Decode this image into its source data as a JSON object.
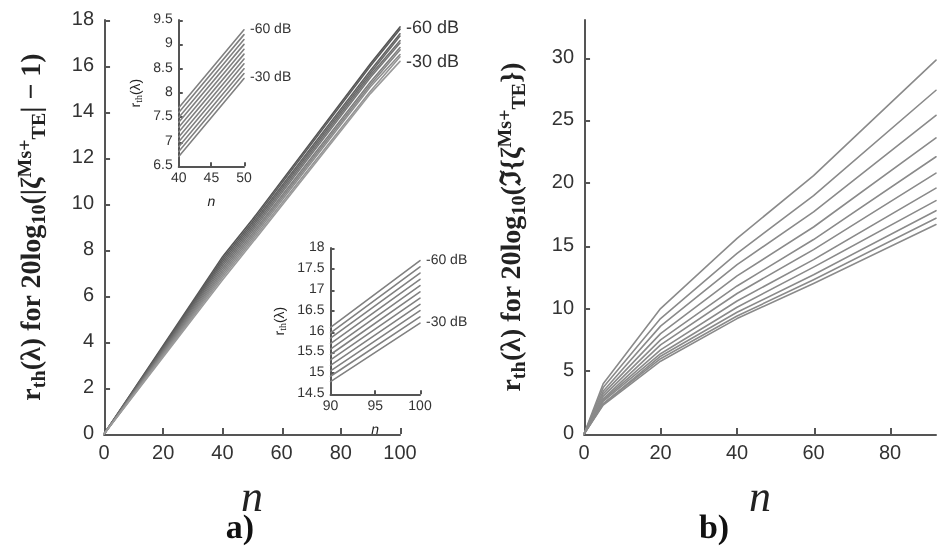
{
  "chart_data": [
    {
      "type": "line",
      "title": "a)",
      "xlabel": "n",
      "ylabel": "r$_{th}$(λ) for 20log$_{10}$(|ζ$^{Ms+}$$_{TE}$| − 1)",
      "x": [
        0,
        40,
        50,
        90,
        100
      ],
      "xlim": [
        0,
        100
      ],
      "xticks": [
        0,
        20,
        40,
        60,
        80,
        100
      ],
      "ylim": [
        0,
        18
      ],
      "yticks": [
        0,
        2,
        4,
        6,
        8,
        10,
        12,
        14,
        16,
        18
      ],
      "grid": false,
      "marker": "none",
      "series": [
        {
          "name": "-60 dB",
          "color": "#555555",
          "values": [
            0,
            7.7,
            9.3,
            16.1,
            17.7
          ]
        },
        {
          "color": "#5c5c5c",
          "values": [
            0,
            7.6,
            9.2,
            16.0,
            17.6
          ]
        },
        {
          "color": "#636363",
          "values": [
            0,
            7.5,
            9.1,
            15.8,
            17.4
          ]
        },
        {
          "color": "#6a6a6a",
          "values": [
            0,
            7.4,
            9.0,
            15.7,
            17.3
          ]
        },
        {
          "color": "#717171",
          "values": [
            0,
            7.3,
            8.9,
            15.6,
            17.1
          ]
        },
        {
          "color": "#787878",
          "values": [
            0,
            7.2,
            8.8,
            15.5,
            17.0
          ]
        },
        {
          "color": "#7f7f7f",
          "values": [
            0,
            7.1,
            8.7,
            15.3,
            16.8
          ]
        },
        {
          "color": "#868686",
          "values": [
            0,
            7.0,
            8.6,
            15.2,
            16.7
          ]
        },
        {
          "color": "#8d8d8d",
          "values": [
            0,
            6.9,
            8.5,
            15.1,
            16.5
          ]
        },
        {
          "color": "#949494",
          "values": [
            0,
            6.8,
            8.4,
            14.9,
            16.4
          ]
        },
        {
          "name": "-30 dB",
          "color": "#9b9b9b",
          "values": [
            0,
            6.7,
            8.3,
            14.8,
            16.2
          ]
        }
      ]
    },
    {
      "type": "line",
      "xlabel": "n",
      "ylabel": "r$_{th}$(λ)",
      "x": [
        40,
        50
      ],
      "xlim": [
        40,
        50
      ],
      "xticks": [
        40,
        45,
        50
      ],
      "ylim": [
        6.5,
        9.5
      ],
      "yticks": [
        6.5,
        7,
        7.5,
        8,
        8.5,
        9,
        9.5
      ],
      "grid": false,
      "marker": "none",
      "series": [
        {
          "name": "-60 dB",
          "color": "#808080",
          "values": [
            7.7,
            9.3
          ]
        },
        {
          "color": "#808080",
          "values": [
            7.6,
            9.2
          ]
        },
        {
          "color": "#808080",
          "values": [
            7.5,
            9.1
          ]
        },
        {
          "color": "#808080",
          "values": [
            7.4,
            9.0
          ]
        },
        {
          "color": "#808080",
          "values": [
            7.3,
            8.9
          ]
        },
        {
          "color": "#808080",
          "values": [
            7.2,
            8.8
          ]
        },
        {
          "color": "#808080",
          "values": [
            7.1,
            8.7
          ]
        },
        {
          "color": "#808080",
          "values": [
            7.0,
            8.6
          ]
        },
        {
          "color": "#808080",
          "values": [
            6.9,
            8.5
          ]
        },
        {
          "color": "#808080",
          "values": [
            6.8,
            8.4
          ]
        },
        {
          "name": "-30 dB",
          "color": "#808080",
          "values": [
            6.7,
            8.3
          ]
        }
      ]
    },
    {
      "type": "line",
      "xlabel": "n",
      "ylabel": "r$_{th}$(λ)",
      "x": [
        90,
        100
      ],
      "xlim": [
        90,
        100
      ],
      "xticks": [
        90,
        95,
        100
      ],
      "ylim": [
        14.5,
        18
      ],
      "yticks": [
        14.5,
        15,
        15.5,
        16,
        16.5,
        17,
        17.5,
        18
      ],
      "grid": false,
      "marker": "none",
      "series": [
        {
          "name": "-60 dB",
          "color": "#808080",
          "values": [
            16.1,
            17.7
          ]
        },
        {
          "color": "#808080",
          "values": [
            15.97,
            17.55
          ]
        },
        {
          "color": "#808080",
          "values": [
            15.84,
            17.4
          ]
        },
        {
          "color": "#808080",
          "values": [
            15.71,
            17.25
          ]
        },
        {
          "color": "#808080",
          "values": [
            15.58,
            17.1
          ]
        },
        {
          "color": "#808080",
          "values": [
            15.45,
            16.95
          ]
        },
        {
          "color": "#808080",
          "values": [
            15.32,
            16.8
          ]
        },
        {
          "color": "#808080",
          "values": [
            15.19,
            16.65
          ]
        },
        {
          "color": "#808080",
          "values": [
            15.06,
            16.5
          ]
        },
        {
          "color": "#808080",
          "values": [
            14.93,
            16.35
          ]
        },
        {
          "name": "-30 dB",
          "color": "#808080",
          "values": [
            14.8,
            16.2
          ]
        }
      ]
    },
    {
      "type": "line",
      "title": "b)",
      "xlabel": "n",
      "ylabel": "r$_{th}$(λ) for 20log$_{10}$(ℑ{ζ$^{Ms+}$$_{TE}$})",
      "x": [
        0,
        5,
        20,
        40,
        60,
        92
      ],
      "xlim": [
        0,
        92
      ],
      "xticks": [
        0,
        20,
        40,
        60,
        80
      ],
      "ylim": [
        0,
        33
      ],
      "yticks": [
        0,
        5,
        10,
        15,
        20,
        25,
        30
      ],
      "grid": false,
      "marker": "none",
      "series": [
        {
          "color": "#8a8a8a",
          "values": [
            0,
            4.0,
            10.0,
            15.6,
            20.6,
            29.8
          ]
        },
        {
          "color": "#8a8a8a",
          "values": [
            0,
            3.7,
            9.2,
            14.4,
            19.0,
            27.4
          ]
        },
        {
          "color": "#8a8a8a",
          "values": [
            0,
            3.4,
            8.6,
            13.5,
            17.7,
            25.4
          ]
        },
        {
          "color": "#8a8a8a",
          "values": [
            0,
            3.2,
            8.0,
            12.6,
            16.5,
            23.6
          ]
        },
        {
          "color": "#8a8a8a",
          "values": [
            0,
            3.0,
            7.5,
            11.8,
            15.5,
            22.1
          ]
        },
        {
          "color": "#8a8a8a",
          "values": [
            0,
            2.8,
            7.1,
            11.2,
            14.7,
            20.8
          ]
        },
        {
          "color": "#8a8a8a",
          "values": [
            0,
            2.7,
            6.7,
            10.6,
            13.9,
            19.6
          ]
        },
        {
          "color": "#8a8a8a",
          "values": [
            0,
            2.6,
            6.4,
            10.1,
            13.3,
            18.6
          ]
        },
        {
          "color": "#8a8a8a",
          "values": [
            0,
            2.4,
            6.2,
            9.7,
            12.7,
            17.8
          ]
        },
        {
          "color": "#8a8a8a",
          "values": [
            0,
            2.4,
            6.0,
            9.4,
            12.3,
            17.2
          ]
        },
        {
          "color": "#8a8a8a",
          "values": [
            0,
            2.3,
            5.8,
            9.2,
            12.0,
            16.7
          ]
        }
      ]
    }
  ]
}
